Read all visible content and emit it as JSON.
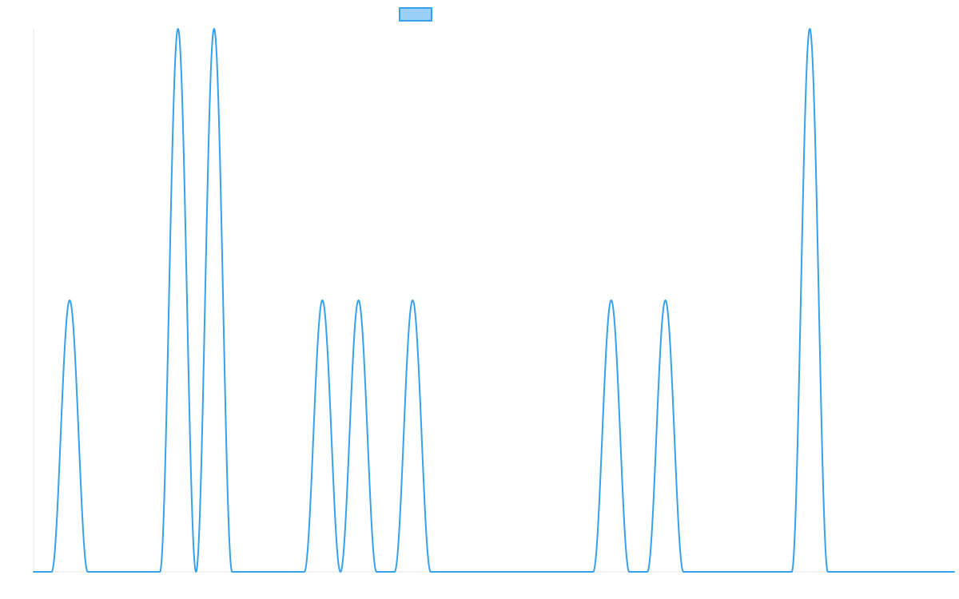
{
  "colors": {
    "series_stroke": "#36a2eb",
    "series_fill": "#9ad0f5",
    "axis_line": "#e5e5e5"
  },
  "chart_data": {
    "type": "line",
    "title": "",
    "xlabel": "",
    "ylabel": "",
    "grid": false,
    "legend_position": "top-center",
    "ylim": [
      0,
      2
    ],
    "xlim": [
      0,
      51
    ],
    "series": [
      {
        "name": "",
        "pulses": [
          {
            "center": 2,
            "height": 1
          },
          {
            "center": 8,
            "height": 2
          },
          {
            "center": 10,
            "height": 2
          },
          {
            "center": 16,
            "height": 1
          },
          {
            "center": 18,
            "height": 1
          },
          {
            "center": 21,
            "height": 1
          },
          {
            "center": 32,
            "height": 1
          },
          {
            "center": 35,
            "height": 1
          },
          {
            "center": 43,
            "height": 2
          }
        ]
      }
    ]
  }
}
